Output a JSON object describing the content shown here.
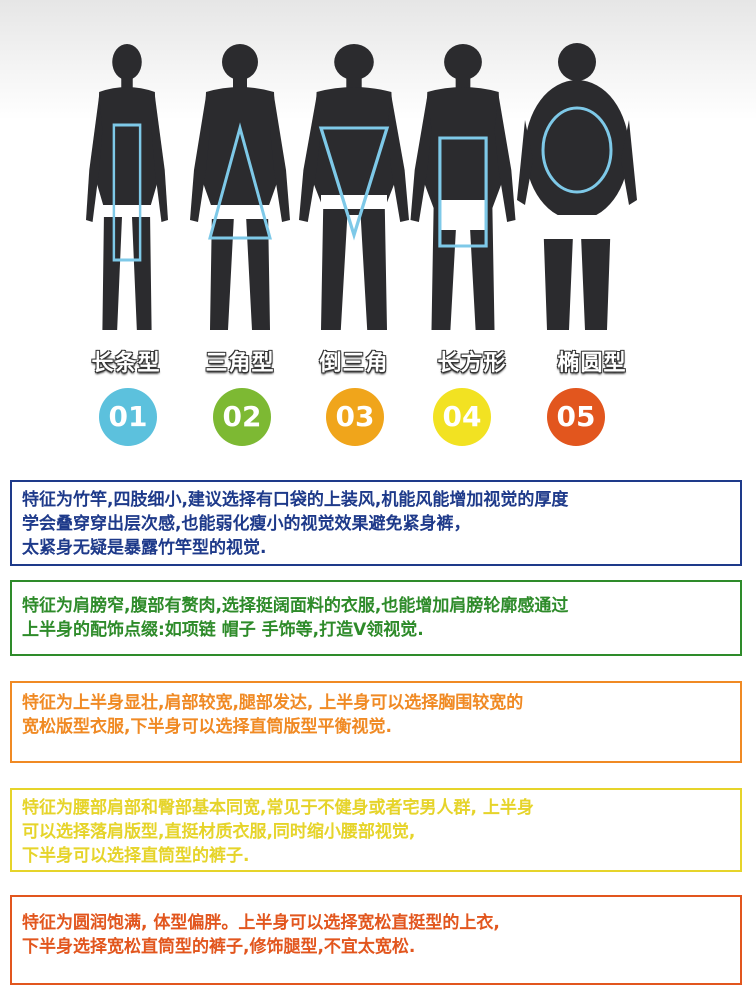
{
  "types": [
    {
      "label": "长条型",
      "number": "01",
      "color": "#5cc1dd",
      "outline": "#7ec9e8"
    },
    {
      "label": "三角型",
      "number": "02",
      "color": "#7db933",
      "outline": "#7ec9e8"
    },
    {
      "label": "倒三角",
      "number": "03",
      "color": "#f0a51b",
      "outline": "#7ec9e8"
    },
    {
      "label": "长方形",
      "number": "04",
      "color": "#f2e222",
      "outline": "#7ec9e8"
    },
    {
      "label": "椭圆型",
      "number": "05",
      "color": "#e2561e",
      "outline": "#7ec9e8"
    }
  ],
  "descriptions": [
    {
      "color": "#1e3a8a",
      "lines": [
        "特征为竹竿,四肢细小,建议选择有口袋的上装风,机能风能增加视觉的厚度",
        "学会叠穿穿出层次感,也能弱化瘦小的视觉效果避免紧身裤，",
        "太紧身无疑是暴露竹竿型的视觉."
      ]
    },
    {
      "color": "#2e8b2a",
      "lines": [
        "特征为肩膀窄,腹部有赘肉,选择挺阔面料的衣服,也能增加肩膀轮廓感通过",
        "上半身的配饰点缀:如项链 帽子 手饰等,打造V领视觉."
      ]
    },
    {
      "color": "#f08a24",
      "lines": [
        "特征为上半身显壮,肩部较宽,腿部发达, 上半身可以选择胸围较宽的",
        "宽松版型衣服,下半身可以选择直筒版型平衡视觉."
      ]
    },
    {
      "color": "#e6d42a",
      "lines": [
        "特征为腰部肩部和臀部基本同宽,常见于不健身或者宅男人群, 上半身",
        "可以选择落肩版型,直挺材质衣服,同时缩小腰部视觉,",
        "下半身可以选择直筒型的裤子."
      ]
    },
    {
      "color": "#e2561e",
      "lines": [
        "特征为圆润饱满, 体型偏胖。上半身可以选择宽松直挺型的上衣,",
        "下半身选择宽松直筒型的裤子,修饰腿型,不宜太宽松."
      ]
    }
  ]
}
